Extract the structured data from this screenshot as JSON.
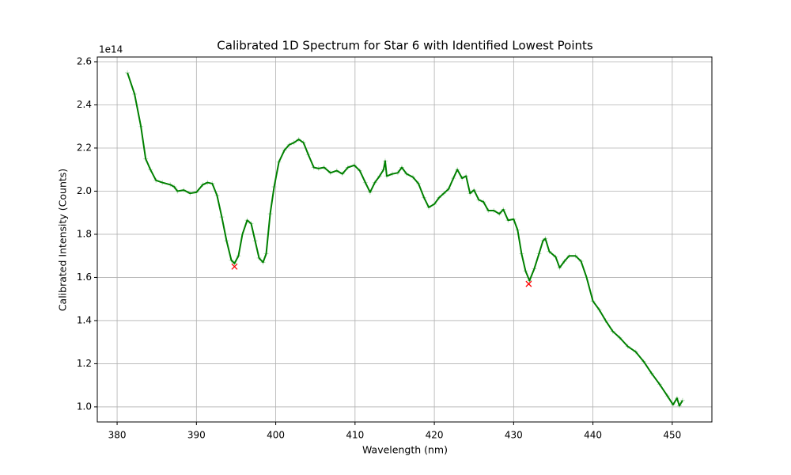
{
  "chart_data": {
    "type": "line",
    "title": "Calibrated 1D Spectrum for Star 6 with Identified Lowest Points",
    "x_label": "Wavelength (nm)",
    "y_label": "Calibrated Intensity (Counts)",
    "y_offset_label": "1e14",
    "x": [
      381.3,
      382.2,
      383.0,
      383.6,
      384.2,
      384.9,
      385.7,
      386.7,
      387.2,
      387.6,
      388.4,
      389.2,
      390.0,
      390.8,
      391.4,
      392.0,
      392.6,
      393.2,
      393.8,
      394.4,
      394.8,
      395.3,
      395.8,
      396.4,
      396.9,
      397.4,
      397.9,
      398.4,
      398.8,
      399.3,
      399.8,
      400.4,
      401.1,
      401.7,
      402.3,
      402.9,
      403.5,
      404.1,
      404.8,
      405.4,
      406.1,
      406.9,
      407.7,
      408.4,
      409.1,
      409.9,
      410.6,
      411.3,
      411.9,
      412.5,
      413.1,
      413.6,
      413.8,
      414.0,
      414.7,
      415.4,
      415.9,
      416.5,
      417.3,
      418.0,
      418.7,
      419.3,
      420.0,
      420.6,
      421.2,
      421.8,
      422.4,
      422.9,
      423.5,
      424.0,
      424.5,
      425.0,
      425.6,
      426.2,
      426.8,
      427.5,
      428.2,
      428.7,
      429.3,
      430.0,
      430.5,
      431.0,
      431.5,
      432.0,
      432.6,
      433.2,
      433.7,
      434.0,
      434.5,
      435.3,
      435.8,
      436.4,
      437.0,
      437.8,
      438.5,
      439.2,
      440.0,
      440.8,
      441.6,
      442.5,
      443.4,
      444.4,
      445.4,
      446.4,
      447.4,
      448.4,
      449.4,
      450.1,
      450.6,
      450.9,
      451.3
    ],
    "series": [
      {
        "color": "#008000",
        "marker": "+",
        "marker_color": "#b9dbb9",
        "values": [
          2.549,
          2.45,
          2.3,
          2.15,
          2.1,
          2.05,
          2.04,
          2.03,
          2.02,
          2.0,
          2.005,
          1.99,
          1.995,
          2.03,
          2.04,
          2.035,
          1.98,
          1.88,
          1.77,
          1.68,
          1.665,
          1.7,
          1.8,
          1.865,
          1.85,
          1.77,
          1.69,
          1.67,
          1.71,
          1.895,
          2.02,
          2.135,
          2.19,
          2.215,
          2.225,
          2.24,
          2.225,
          2.17,
          2.11,
          2.105,
          2.11,
          2.085,
          2.095,
          2.08,
          2.11,
          2.12,
          2.095,
          2.04,
          1.995,
          2.04,
          2.07,
          2.1,
          2.14,
          2.07,
          2.08,
          2.085,
          2.11,
          2.08,
          2.065,
          2.035,
          1.97,
          1.925,
          1.94,
          1.97,
          1.99,
          2.01,
          2.06,
          2.1,
          2.06,
          2.07,
          1.99,
          2.005,
          1.96,
          1.95,
          1.91,
          1.91,
          1.895,
          1.915,
          1.865,
          1.87,
          1.82,
          1.71,
          1.63,
          1.585,
          1.64,
          1.71,
          1.77,
          1.78,
          1.72,
          1.695,
          1.645,
          1.675,
          1.7,
          1.7,
          1.675,
          1.6,
          1.49,
          1.45,
          1.4,
          1.35,
          1.32,
          1.28,
          1.255,
          1.21,
          1.155,
          1.105,
          1.05,
          1.01,
          1.04,
          1.005,
          1.03
        ]
      }
    ],
    "points": {
      "type": "scatter",
      "marker": "x",
      "color": "#ff0000",
      "x": [
        394.8,
        431.9
      ],
      "values": [
        1.65,
        1.57
      ]
    },
    "xlim": [
      377.5,
      455
    ],
    "ylim": [
      0.93,
      2.622
    ],
    "xticks": [
      380,
      390,
      400,
      410,
      420,
      430,
      440,
      450
    ],
    "yticks": [
      {
        "value": 1,
        "label": "1.0"
      },
      1.2,
      1.4,
      1.6,
      1.8,
      {
        "value": 2,
        "label": "2.0"
      },
      2.2,
      2.4,
      2.6
    ],
    "grid": true
  }
}
